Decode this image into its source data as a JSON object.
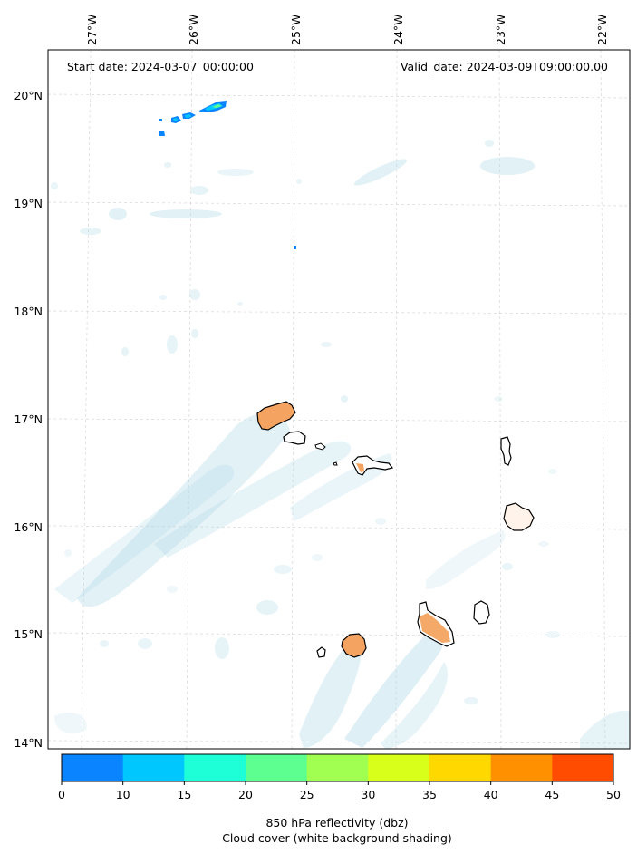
{
  "header": {
    "start_date": "Start date: 2024-03-07_00:00:00",
    "valid_date": "Valid_date: 2024-03-09T09:00:00.00"
  },
  "axes": {
    "lon_labels": [
      "27°W",
      "26°W",
      "25°W",
      "24°W",
      "23°W",
      "22°W"
    ],
    "lat_labels": [
      "20°N",
      "19°N",
      "18°N",
      "17°N",
      "16°N",
      "15°N",
      "14°N"
    ]
  },
  "colorbar": {
    "ticks": [
      "0",
      "10",
      "15",
      "20",
      "25",
      "30",
      "35",
      "40",
      "45",
      "50"
    ],
    "colors": [
      "#0a84ff",
      "#00c8ff",
      "#1effd8",
      "#5cff90",
      "#a0ff50",
      "#d8ff1a",
      "#ffd800",
      "#ff9000",
      "#ff4c00"
    ],
    "label_line1": "850 hPa reflectivity (dbz)",
    "label_line2": "Cloud cover (white background shading)"
  },
  "legend_colors": {
    "cloud": "#add8e6",
    "land_fill": "#f4a460"
  }
}
